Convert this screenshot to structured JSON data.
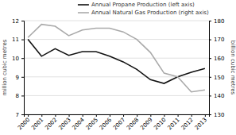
{
  "chart_data": {
    "type": "line",
    "x": [
      2000,
      2001,
      2002,
      2003,
      2004,
      2005,
      2006,
      2007,
      2008,
      2009,
      2010,
      2011,
      2012,
      2013
    ],
    "series": [
      {
        "name": "Annual Propane Production (left axis)",
        "color": "#111111",
        "values": [
          11.0,
          10.1,
          10.5,
          10.15,
          10.35,
          10.35,
          10.1,
          9.8,
          9.4,
          8.85,
          8.65,
          9.0,
          9.25,
          9.45
        ]
      },
      {
        "name": "Annual Natural Gas Production (right axis)",
        "color": "#aaaaaa",
        "axis": "y2",
        "values": [
          171,
          178,
          177,
          172,
          175,
          176,
          176,
          174,
          170,
          163,
          152,
          150,
          142,
          143
        ]
      }
    ],
    "ylabel": "million cubic metres",
    "y2label": "billion cubic metres",
    "xlim": [
      1999.7,
      2013.3
    ],
    "xticks": [
      2000,
      2001,
      2002,
      2003,
      2004,
      2005,
      2006,
      2007,
      2008,
      2009,
      2010,
      2011,
      2012,
      2013
    ],
    "ylim": [
      7,
      12
    ],
    "yticks": [
      7,
      8,
      9,
      10,
      11,
      12
    ],
    "y2lim": [
      130,
      180
    ],
    "y2ticks": [
      130,
      140,
      150,
      160,
      170,
      180
    ],
    "grid": true,
    "legend": "upper right"
  }
}
